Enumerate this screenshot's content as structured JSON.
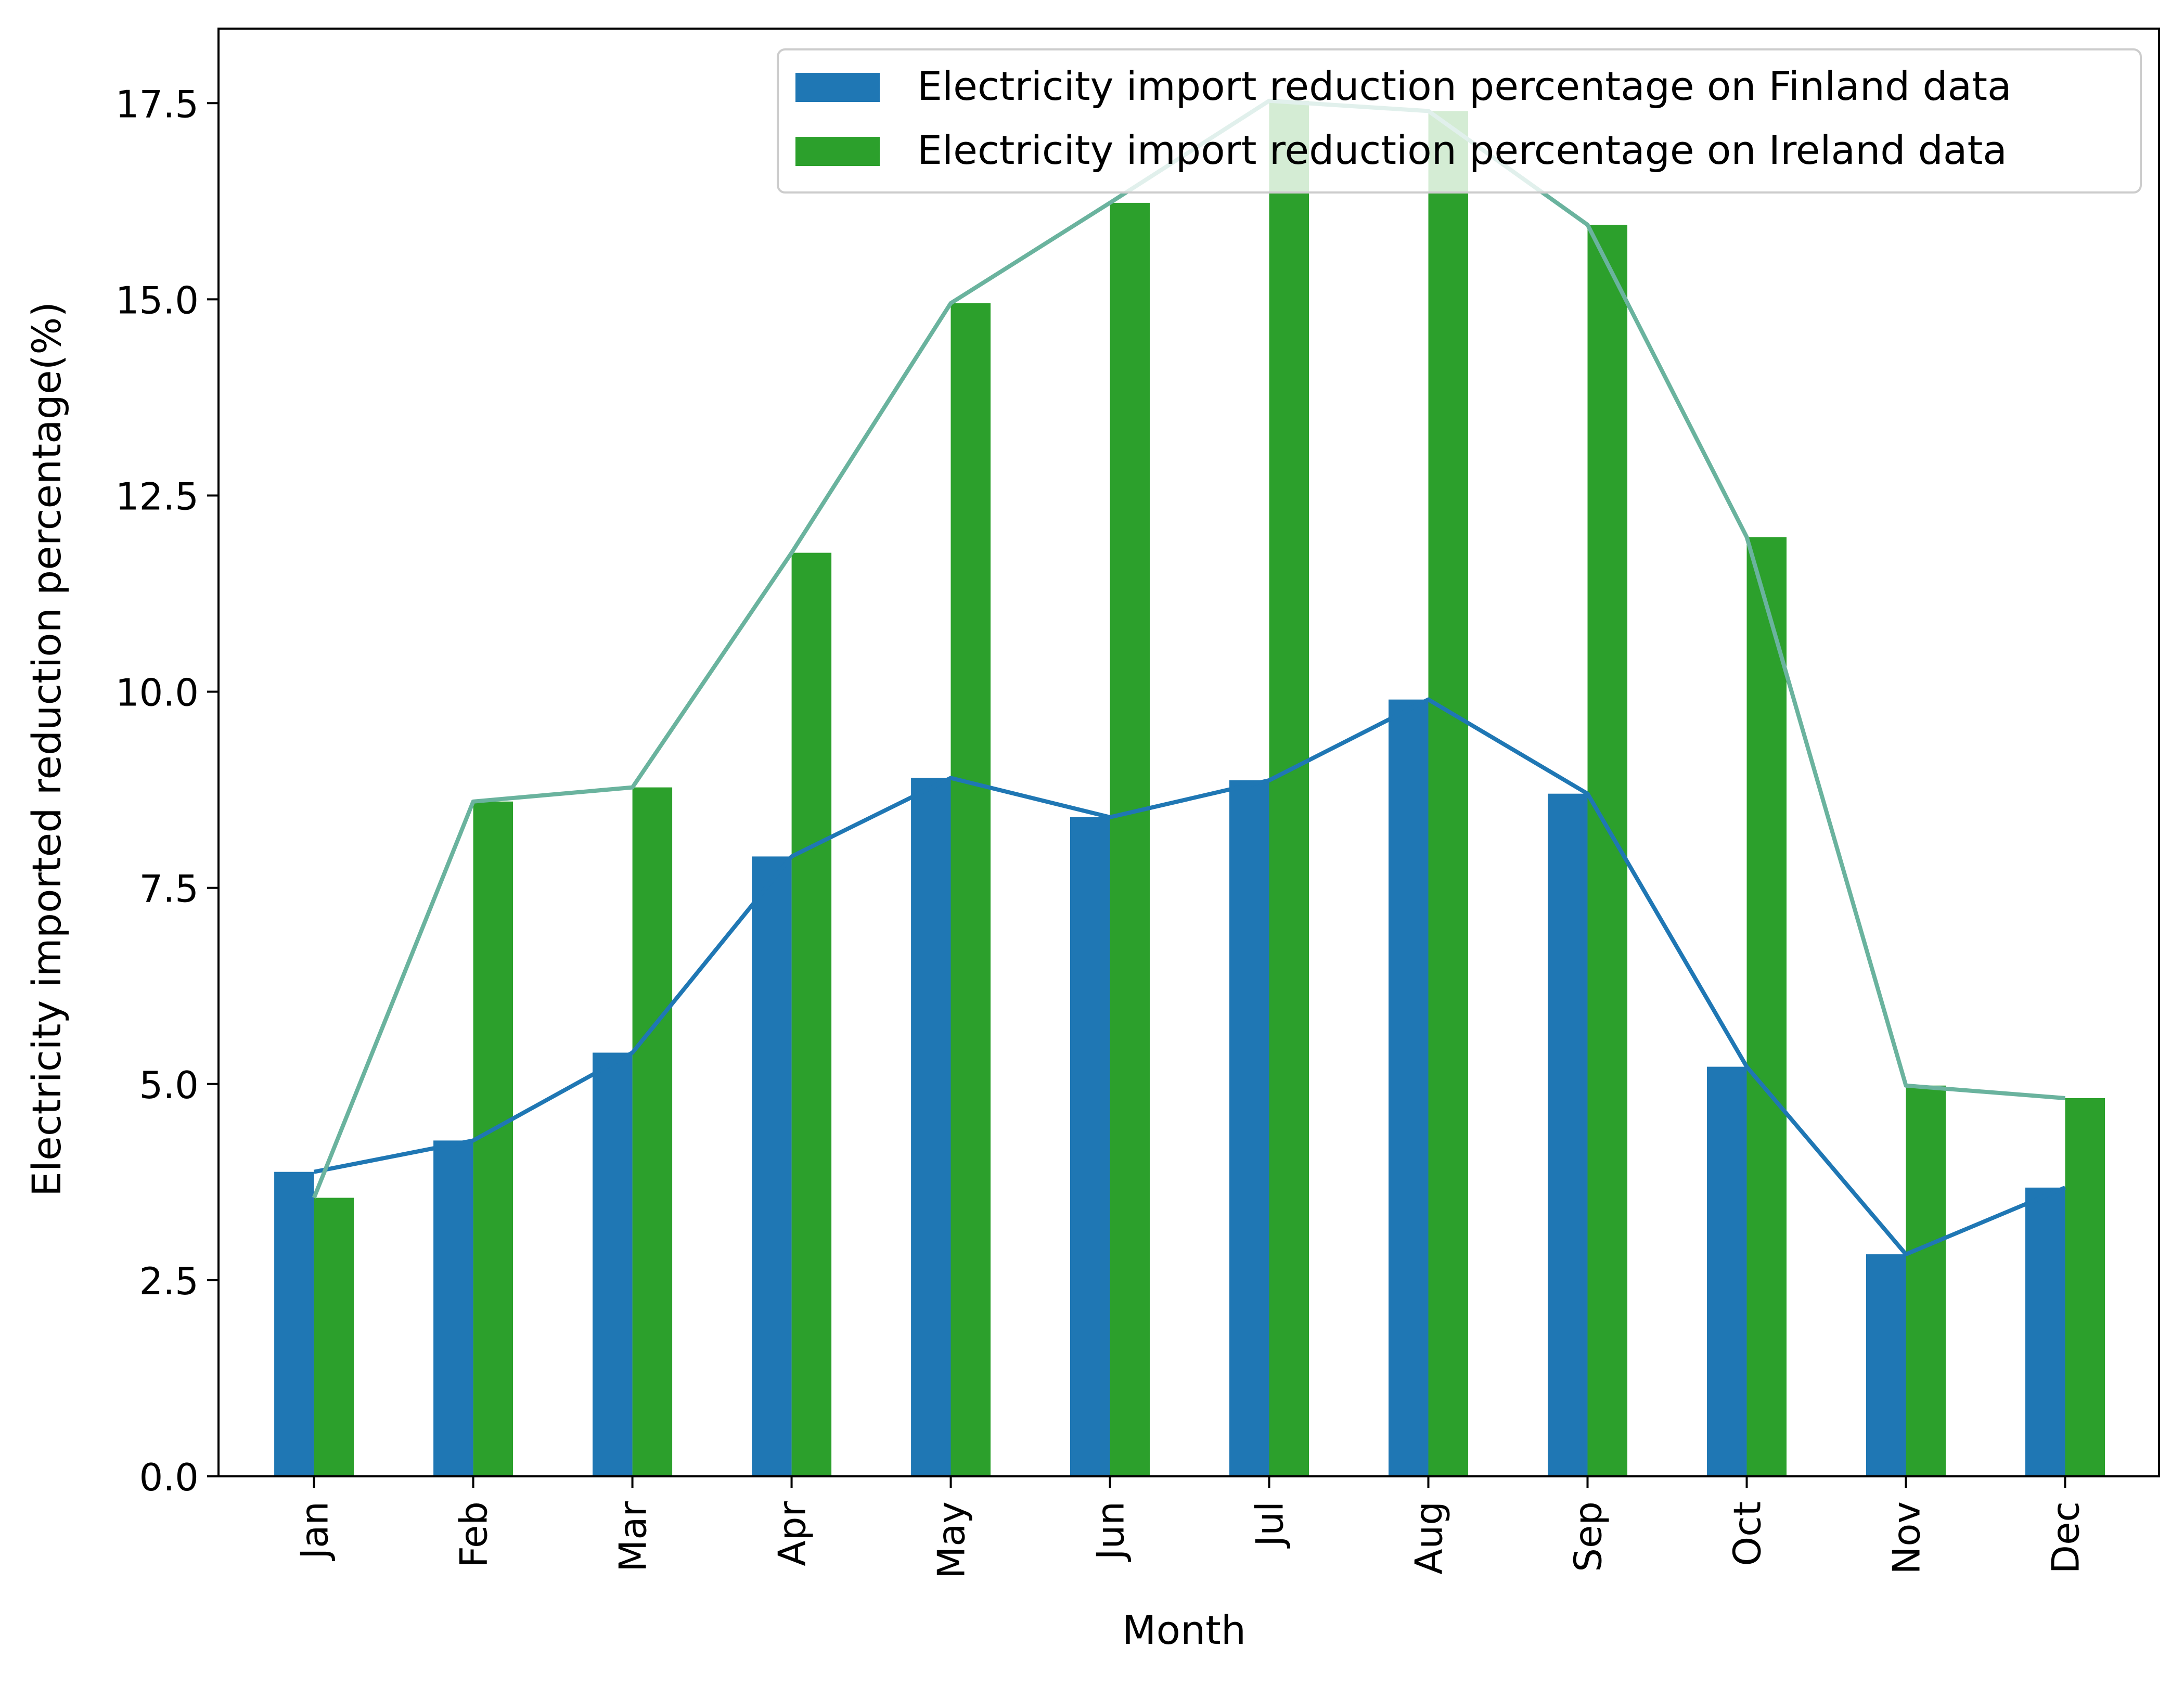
{
  "chart_data": {
    "type": "bar",
    "title": "",
    "xlabel": "Month",
    "ylabel": "Electricity imported reduction percentage(%)",
    "ylim": [
      0,
      18.45
    ],
    "yticks": [
      0.0,
      2.5,
      5.0,
      7.5,
      10.0,
      12.5,
      15.0,
      17.5
    ],
    "ytick_labels": [
      "0.0",
      "2.5",
      "5.0",
      "7.5",
      "10.0",
      "12.5",
      "15.0",
      "17.5"
    ],
    "categories": [
      "Jan",
      "Feb",
      "Mar",
      "Apr",
      "May",
      "Jun",
      "Jul",
      "Aug",
      "Sep",
      "Oct",
      "Nov",
      "Dec"
    ],
    "grid": false,
    "legend_position": "top-right",
    "series": [
      {
        "name": "Electricity import reduction percentage on Finland data",
        "color": "#1f77b4",
        "line_color": "#1f77b4",
        "values": [
          3.88,
          4.28,
          5.4,
          7.9,
          8.9,
          8.4,
          8.87,
          9.9,
          8.7,
          5.22,
          2.83,
          3.68
        ]
      },
      {
        "name": "Electricity import reduction percentage on Ireland data",
        "color": "#2ca02c",
        "line_color": "#6ab39e",
        "values": [
          3.55,
          8.6,
          8.78,
          11.77,
          14.95,
          16.23,
          17.53,
          17.4,
          15.95,
          11.97,
          4.98,
          4.82
        ]
      }
    ]
  }
}
